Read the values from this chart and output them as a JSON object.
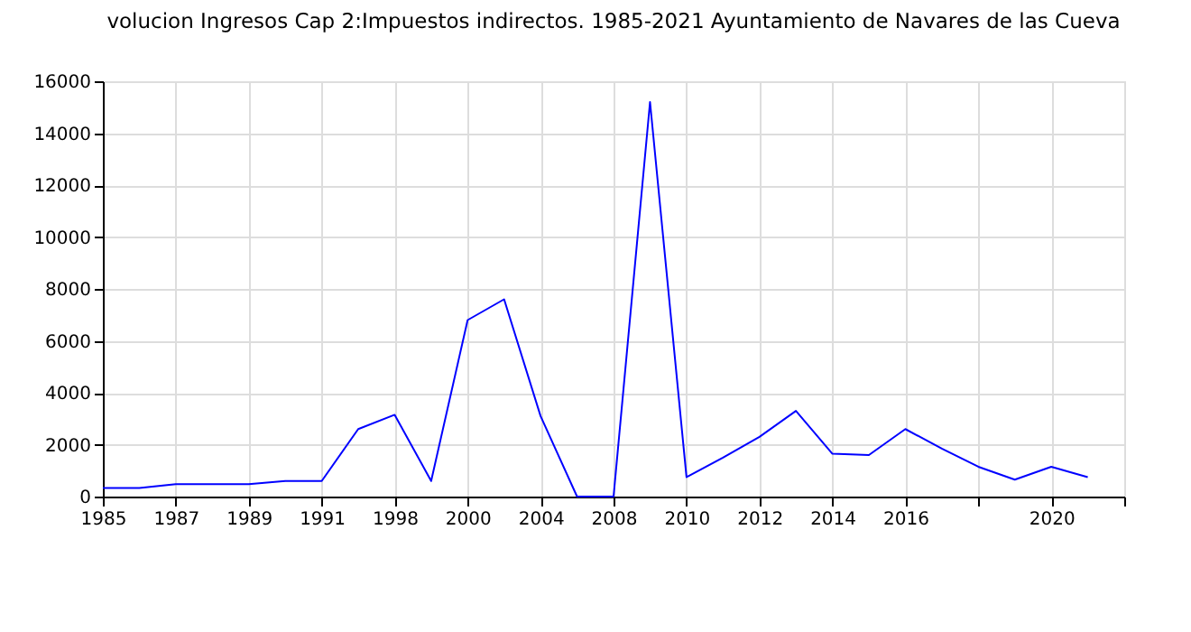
{
  "chart_data": {
    "type": "line",
    "title": "volucion Ingresos Cap 2:Impuestos indirectos. 1985-2021 Ayuntamiento de Navares de las Cueva",
    "categories": [
      "1985",
      null,
      "1987",
      null,
      "1989",
      null,
      "1991",
      null,
      "1998",
      null,
      "2000",
      null,
      "2004",
      null,
      "2008",
      null,
      "2010",
      null,
      "2012",
      null,
      "2014",
      null,
      "2016",
      null,
      null,
      null,
      "2020",
      null,
      null
    ],
    "series": [
      {
        "color": "#0000ff",
        "values": [
          330,
          330,
          480,
          480,
          480,
          600,
          600,
          2600,
          3150,
          600,
          6800,
          7600,
          3100,
          0,
          0,
          15200,
          750,
          1500,
          2300,
          3300,
          1650,
          1600,
          2600,
          1850,
          1150,
          650,
          1150,
          750,
          null
        ]
      }
    ],
    "ylim": [
      0,
      16000
    ],
    "yticks": [
      0,
      2000,
      4000,
      6000,
      8000,
      10000,
      12000,
      14000,
      16000
    ],
    "grid": true,
    "marker": "none",
    "line_style": "solid"
  }
}
